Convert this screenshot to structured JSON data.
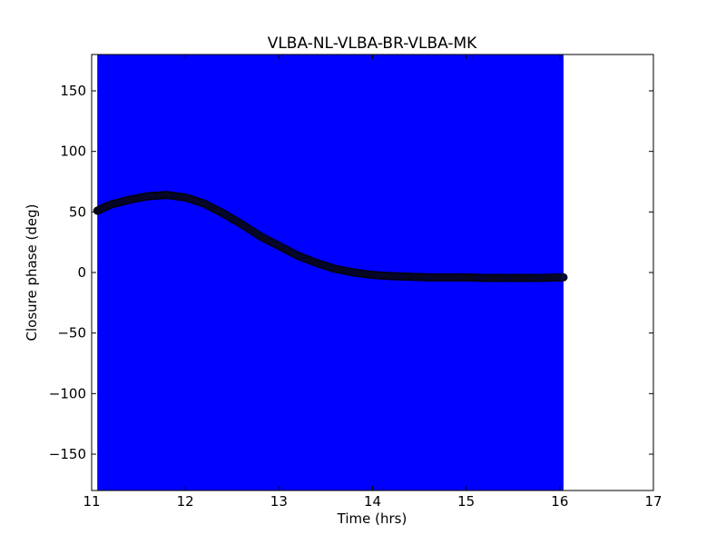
{
  "chart_data": {
    "type": "scatter",
    "title": "VLBA-NL-VLBA-BR-VLBA-MK",
    "xlabel": "Time (hrs)",
    "ylabel": "Closure phase (deg)",
    "xlim": [
      11,
      17
    ],
    "ylim": [
      -180,
      180
    ],
    "xticks": [
      11,
      12,
      13,
      14,
      15,
      16,
      17
    ],
    "yticks": [
      -150,
      -100,
      -50,
      0,
      50,
      100,
      150
    ],
    "xtick_labels": [
      "11",
      "12",
      "13",
      "14",
      "15",
      "16",
      "17"
    ],
    "ytick_labels": [
      "−150",
      "−100",
      "−50",
      "0",
      "50",
      "100",
      "150"
    ],
    "error_band": {
      "x_start": 11.06,
      "x_end": 16.04,
      "y_low": -180,
      "y_high": 180,
      "color": "#0000ff"
    },
    "series": [
      {
        "marker_color": "#0a0a3c",
        "x": [
          11.06,
          11.2,
          11.4,
          11.6,
          11.8,
          12.0,
          12.2,
          12.4,
          12.6,
          12.8,
          13.0,
          13.2,
          13.4,
          13.6,
          13.8,
          14.0,
          14.2,
          14.4,
          14.6,
          14.8,
          15.0,
          15.2,
          15.4,
          15.6,
          15.8,
          16.04
        ],
        "y": [
          51,
          56,
          60,
          63,
          64,
          62,
          57,
          49,
          40,
          30,
          22,
          14,
          8,
          3,
          0,
          -2,
          -3,
          -3.5,
          -4,
          -4,
          -4,
          -4.5,
          -4.5,
          -4.5,
          -4.5,
          -4
        ]
      }
    ],
    "grid": false,
    "legend": "none"
  }
}
